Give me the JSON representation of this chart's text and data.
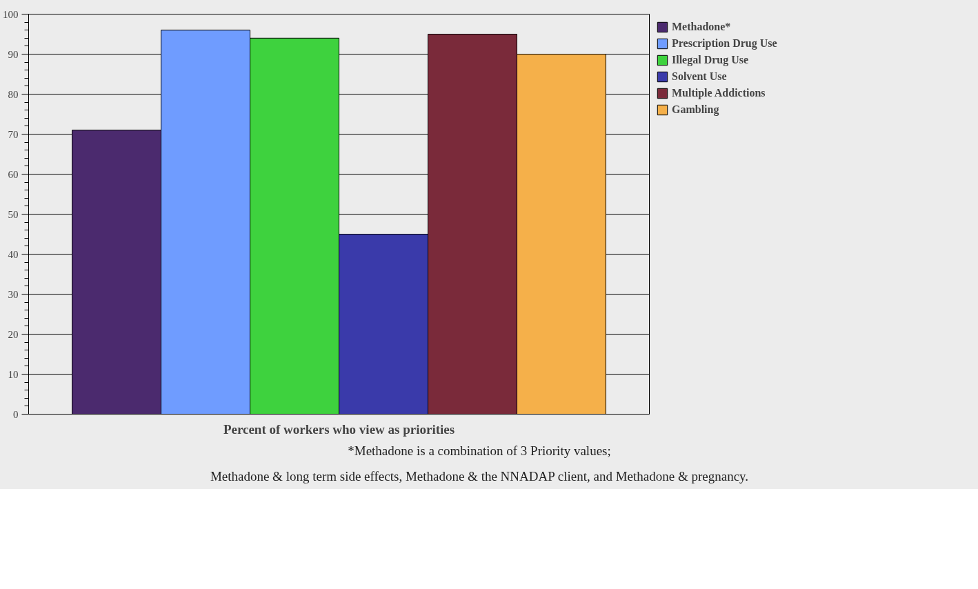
{
  "chart_data": {
    "type": "bar",
    "xlabel": "Percent of workers who view as priorities",
    "categories": [
      null
    ],
    "series": [
      {
        "name": "Methadone*",
        "color": "#4b2a6e",
        "values": [
          71
        ]
      },
      {
        "name": "Prescription Drug Use",
        "color": "#6f9cff",
        "values": [
          96
        ]
      },
      {
        "name": "Illegal Drug Use",
        "color": "#3ed23e",
        "values": [
          94
        ]
      },
      {
        "name": "Solvent Use",
        "color": "#3a3aaa",
        "values": [
          45
        ]
      },
      {
        "name": "Multiple Addictions",
        "color": "#7a2a3a",
        "values": [
          95
        ]
      },
      {
        "name": "Gambling",
        "color": "#f5b04a",
        "values": [
          90
        ]
      }
    ],
    "ylim": [
      0,
      100
    ],
    "yticks": [
      0,
      10,
      20,
      30,
      40,
      50,
      60,
      70,
      80,
      90,
      100
    ],
    "grid": "y",
    "legend": "right",
    "tick_labels": "y",
    "annotations": [
      "*Methadone is a combination of 3 Priority values;",
      "Methadone & long term side effects, Methadone & the NNADAP client, and Methadone & pregnancy."
    ]
  }
}
